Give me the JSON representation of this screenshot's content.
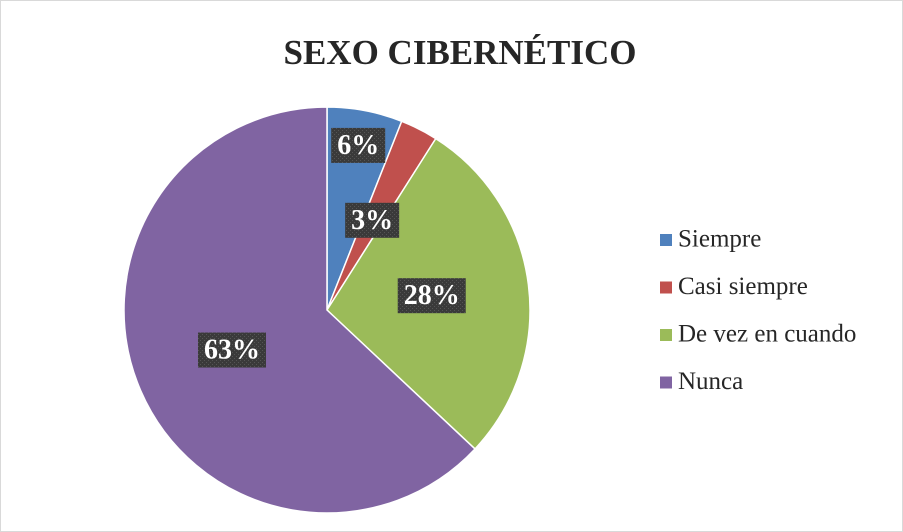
{
  "chart_data": {
    "type": "pie",
    "title": "SEXO CIBERNÉTICO",
    "categories": [
      "Siempre",
      "Casi siempre",
      "De vez en cuando",
      "Nunca"
    ],
    "values": [
      6,
      3,
      28,
      63
    ],
    "value_labels": [
      "6%",
      "3%",
      "28%",
      "63%"
    ],
    "colors": [
      "#4f81bd",
      "#c0504d",
      "#9bbb59",
      "#8064a2"
    ],
    "legend": "right"
  }
}
